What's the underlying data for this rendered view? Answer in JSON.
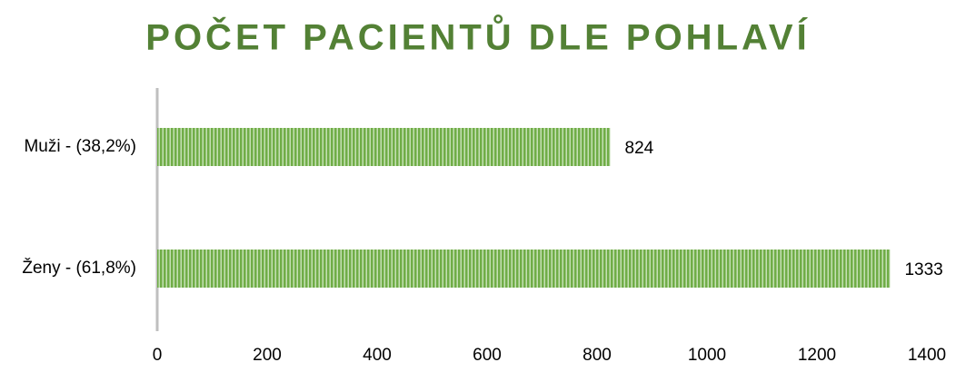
{
  "chart_data": {
    "type": "bar",
    "orientation": "horizontal",
    "title": "POČET PACIENTŮ DLE POHLAVÍ",
    "categories": [
      "Muži - (38,2%)",
      "Ženy - (61,8%)"
    ],
    "values": [
      824,
      1333
    ],
    "color": "#70ad47",
    "xlim": [
      0,
      1400
    ],
    "xticks": [
      0,
      200,
      400,
      600,
      800,
      1000,
      1200,
      1400
    ],
    "grid": false
  }
}
